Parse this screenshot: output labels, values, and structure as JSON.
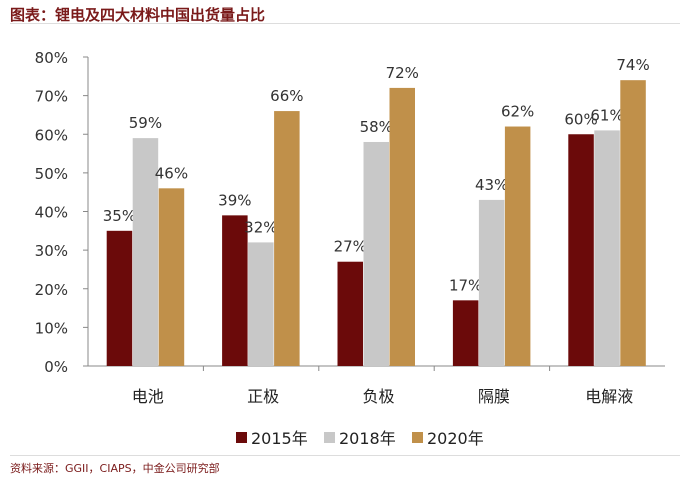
{
  "title": "图表：锂电及四大材料中国出货量占比",
  "source": "资料来源：GGII，CIAPS，中金公司研究部",
  "chart_data": {
    "type": "bar",
    "title": "图表：锂电及四大材料中国出货量占比",
    "categories": [
      "电池",
      "正极",
      "负极",
      "隔膜",
      "电解液"
    ],
    "series": [
      {
        "name": "2015年",
        "color": "#6b0a0a",
        "values": [
          35,
          39,
          27,
          17,
          60
        ]
      },
      {
        "name": "2018年",
        "color": "#c8c8c8",
        "values": [
          59,
          32,
          58,
          43,
          61
        ]
      },
      {
        "name": "2020年",
        "color": "#c0904a",
        "values": [
          46,
          66,
          72,
          62,
          74
        ]
      }
    ],
    "ylim": [
      0,
      80
    ],
    "yticks": [
      "0%",
      "10%",
      "20%",
      "30%",
      "40%",
      "50%",
      "60%",
      "70%",
      "80%"
    ],
    "xlabel": "",
    "ylabel": "",
    "legend": "bottom",
    "grid": false
  }
}
